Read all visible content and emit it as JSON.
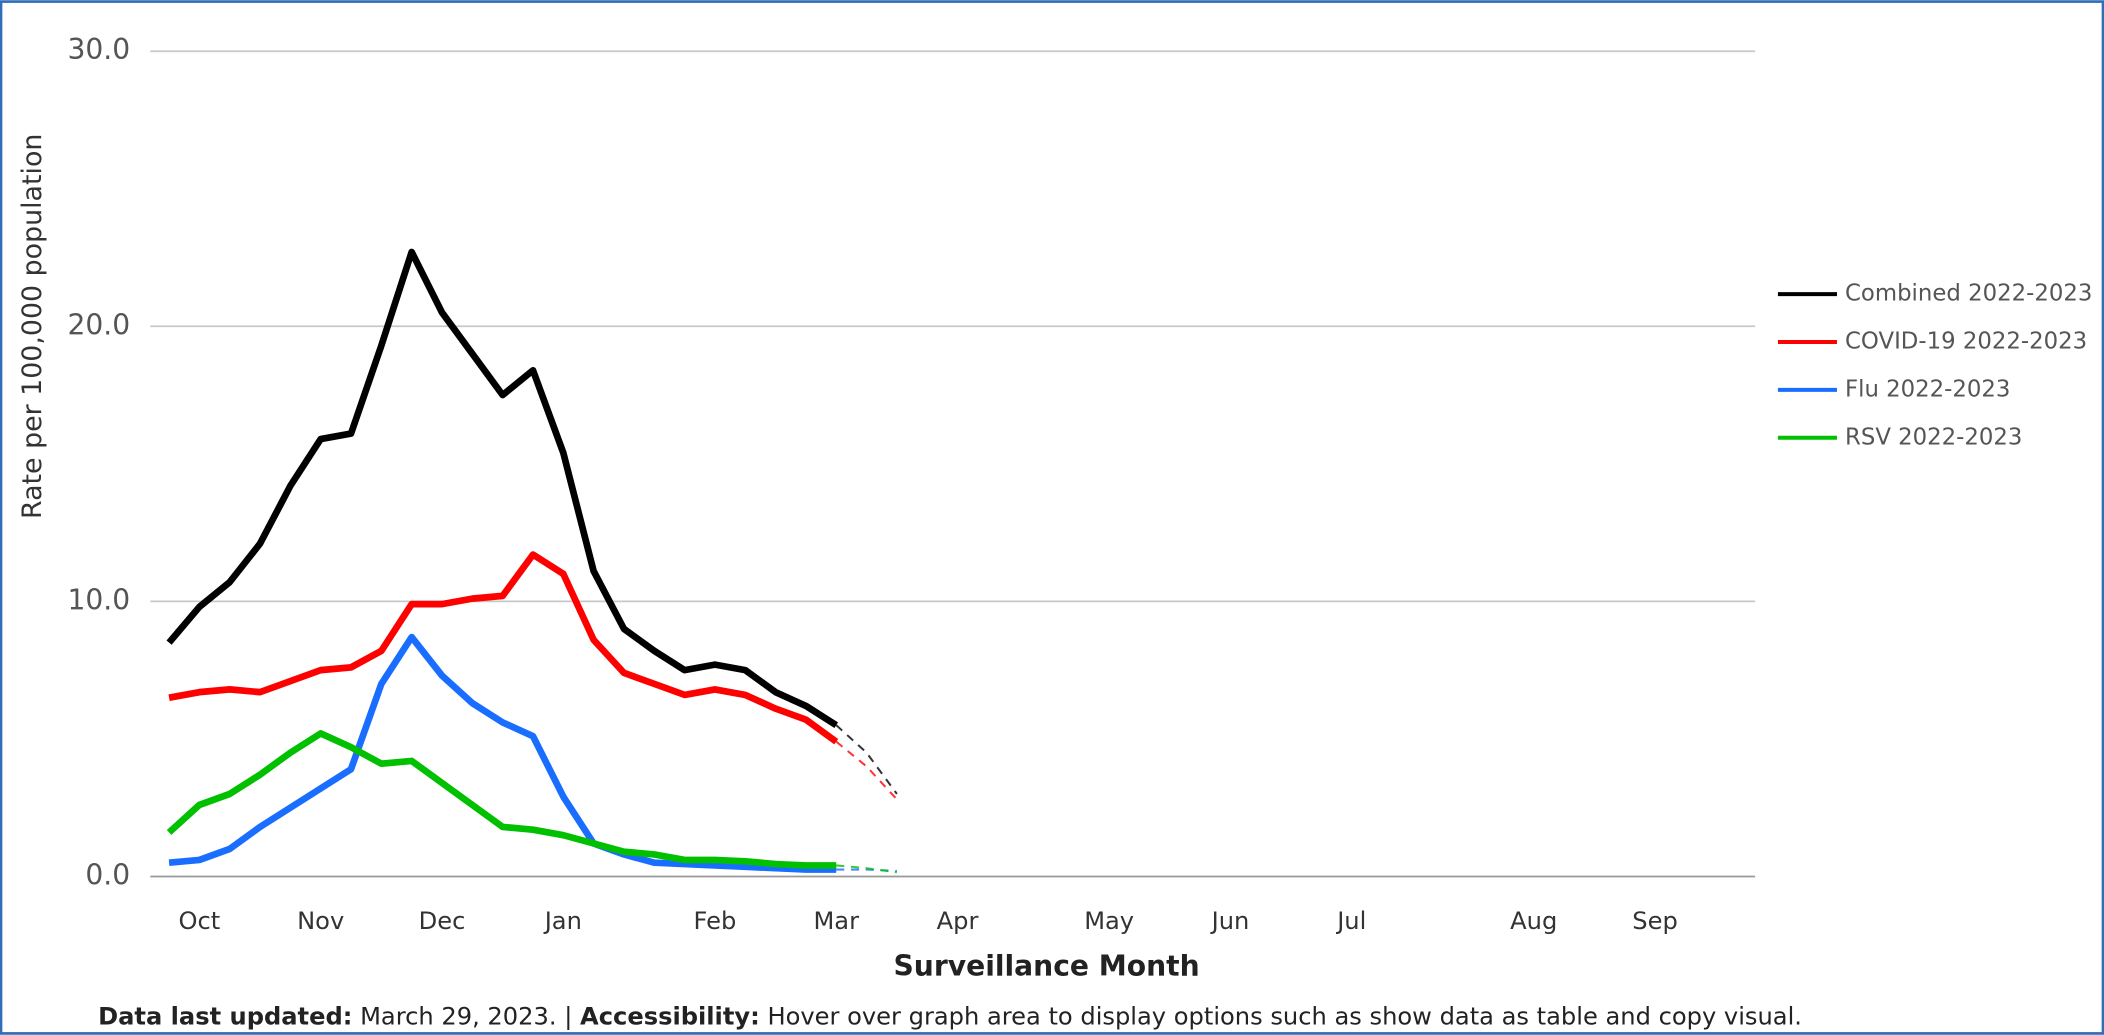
{
  "chart_data": {
    "type": "line",
    "y_label": "Rate per 100,000 population",
    "x_label": "Surveillance Month",
    "categories": [
      null,
      "Oct",
      null,
      null,
      null,
      "Nov",
      null,
      null,
      null,
      "Dec",
      null,
      null,
      null,
      "Jan",
      null,
      null,
      null,
      null,
      "Feb",
      null,
      null,
      null,
      "Mar",
      null,
      null,
      null,
      "Apr",
      null,
      null,
      null,
      null,
      "May",
      null,
      null,
      null,
      "Jun",
      null,
      null,
      null,
      "Jul",
      null,
      null,
      null,
      null,
      null,
      "Aug",
      null,
      null,
      null,
      "Sep",
      null,
      null
    ],
    "ylim": [
      0,
      30
    ],
    "yticks": [
      {
        "value": 0,
        "label": "0.0"
      },
      {
        "value": 10,
        "label": "10.0"
      },
      {
        "value": 20,
        "label": "20.0"
      },
      {
        "value": 30,
        "label": "30.0"
      }
    ],
    "grid": true,
    "legend": "right",
    "dashed_from": 22,
    "series": [
      {
        "name": "Combined 2022-2023",
        "color": "#000000",
        "values": [
          8.5,
          9.8,
          10.7,
          12.1,
          14.2,
          15.9,
          16.1,
          19.3,
          22.7,
          20.5,
          19.0,
          17.5,
          18.4,
          15.4,
          11.1,
          9.0,
          8.2,
          7.5,
          7.7,
          7.5,
          6.7,
          6.2,
          5.5,
          4.5,
          3.0,
          null,
          null,
          null,
          null,
          null,
          null,
          null,
          null,
          null,
          null,
          null,
          null,
          null,
          null,
          null,
          null,
          null,
          null,
          null,
          null,
          null,
          null,
          null,
          null,
          null,
          null,
          null
        ]
      },
      {
        "name": "COVID-19 2022-2023",
        "color": "#ff0000",
        "values": [
          6.5,
          6.7,
          6.8,
          6.7,
          7.1,
          7.5,
          7.6,
          8.2,
          9.9,
          9.9,
          10.1,
          10.2,
          11.7,
          11.0,
          8.6,
          7.4,
          7.0,
          6.6,
          6.8,
          6.6,
          6.1,
          5.7,
          4.9,
          4.0,
          2.8,
          null,
          null,
          null,
          null,
          null,
          null,
          null,
          null,
          null,
          null,
          null,
          null,
          null,
          null,
          null,
          null,
          null,
          null,
          null,
          null,
          null,
          null,
          null,
          null,
          null,
          null,
          null
        ]
      },
      {
        "name": "Flu 2022-2023",
        "color": "#1a6eff",
        "values": [
          0.5,
          0.6,
          1.0,
          1.8,
          2.5,
          3.2,
          3.9,
          7.0,
          8.7,
          7.3,
          6.3,
          5.6,
          5.1,
          2.9,
          1.2,
          0.8,
          0.5,
          0.45,
          0.4,
          0.35,
          0.3,
          0.25,
          0.25,
          0.25,
          0.2,
          null,
          null,
          null,
          null,
          null,
          null,
          null,
          null,
          null,
          null,
          null,
          null,
          null,
          null,
          null,
          null,
          null,
          null,
          null,
          null,
          null,
          null,
          null,
          null,
          null,
          null,
          null
        ]
      },
      {
        "name": "RSV 2022-2023",
        "color": "#00c000",
        "values": [
          1.6,
          2.6,
          3.0,
          3.7,
          4.5,
          5.2,
          4.7,
          4.1,
          4.2,
          3.4,
          2.6,
          1.8,
          1.7,
          1.5,
          1.2,
          0.9,
          0.8,
          0.6,
          0.6,
          0.55,
          0.45,
          0.4,
          0.4,
          0.3,
          0.15,
          null,
          null,
          null,
          null,
          null,
          null,
          null,
          null,
          null,
          null,
          null,
          null,
          null,
          null,
          null,
          null,
          null,
          null,
          null,
          null,
          null,
          null,
          null,
          null,
          null,
          null,
          null
        ]
      }
    ],
    "footer": {
      "label1": "Data last updated:",
      "text1": "March 29, 2023. |",
      "label2": "Accessibility:",
      "text2": "Hover over graph area to display options such as show data as table and copy visual."
    }
  }
}
